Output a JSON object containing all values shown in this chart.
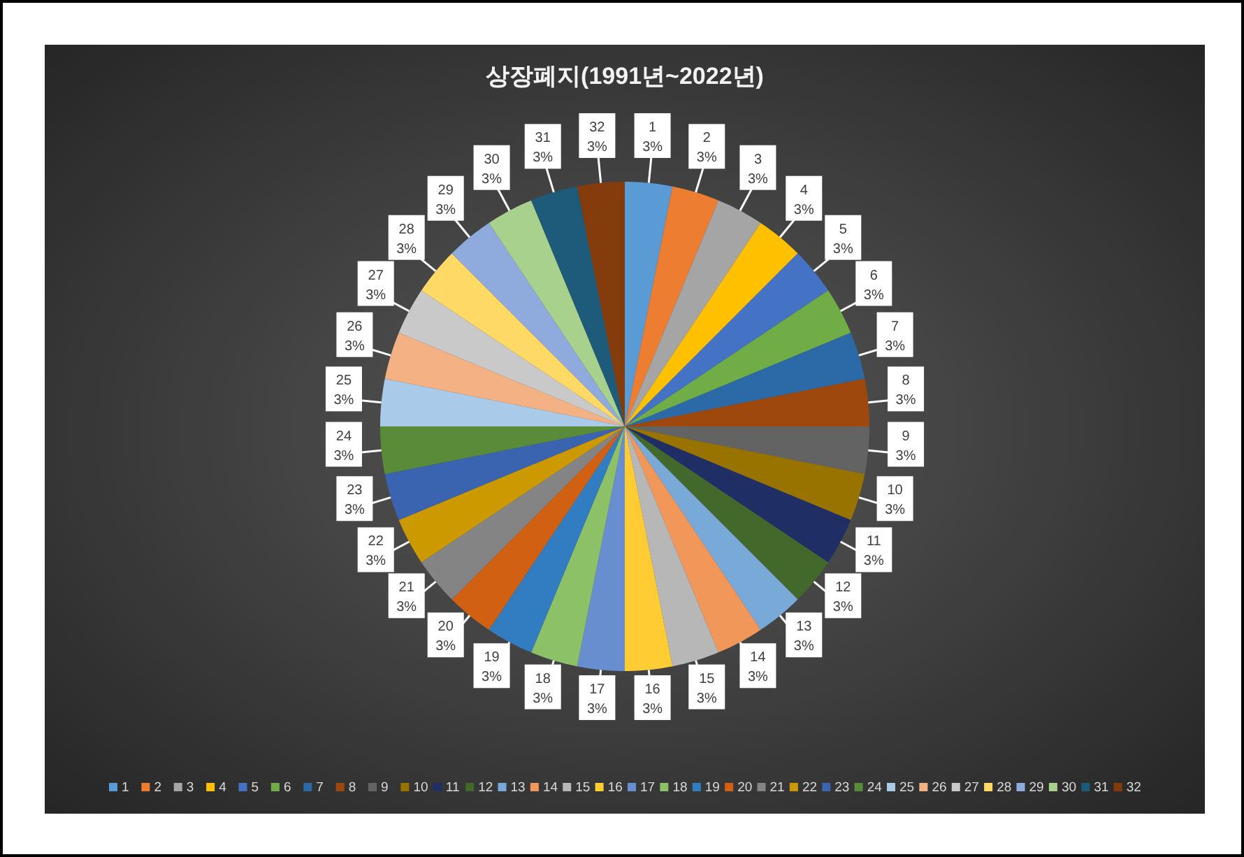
{
  "chart_data": {
    "type": "pie",
    "title": "상장폐지(1991년~2022년)",
    "categories": [
      "1",
      "2",
      "3",
      "4",
      "5",
      "6",
      "7",
      "8",
      "9",
      "10",
      "11",
      "12",
      "13",
      "14",
      "15",
      "16",
      "17",
      "18",
      "19",
      "20",
      "21",
      "22",
      "23",
      "24",
      "25",
      "26",
      "27",
      "28",
      "29",
      "30",
      "31",
      "32"
    ],
    "values": [
      3.125,
      3.125,
      3.125,
      3.125,
      3.125,
      3.125,
      3.125,
      3.125,
      3.125,
      3.125,
      3.125,
      3.125,
      3.125,
      3.125,
      3.125,
      3.125,
      3.125,
      3.125,
      3.125,
      3.125,
      3.125,
      3.125,
      3.125,
      3.125,
      3.125,
      3.125,
      3.125,
      3.125,
      3.125,
      3.125,
      3.125,
      3.125
    ],
    "value_labels": [
      "3%",
      "3%",
      "3%",
      "3%",
      "3%",
      "3%",
      "3%",
      "3%",
      "3%",
      "3%",
      "3%",
      "3%",
      "3%",
      "3%",
      "3%",
      "3%",
      "3%",
      "3%",
      "3%",
      "3%",
      "3%",
      "3%",
      "3%",
      "3%",
      "3%",
      "3%",
      "3%",
      "3%",
      "3%",
      "3%",
      "3%",
      "3%"
    ],
    "colors": [
      "#5b9bd5",
      "#ed7d31",
      "#a5a5a5",
      "#ffc000",
      "#4472c4",
      "#70ad47",
      "#2b6aa6",
      "#9e480e",
      "#636363",
      "#997300",
      "#1f2f66",
      "#43682b",
      "#78a9d8",
      "#f1975a",
      "#b7b7b7",
      "#ffcd33",
      "#698ed0",
      "#8cc168",
      "#327dc2",
      "#d26012",
      "#848484",
      "#cc9a00",
      "#3b64b0",
      "#5a8b39",
      "#a9cbe9",
      "#f4b183",
      "#c9c9c9",
      "#ffd966",
      "#8faadc",
      "#a9d18e",
      "#1e5a7a",
      "#843c0c"
    ],
    "legend": "bottom"
  }
}
